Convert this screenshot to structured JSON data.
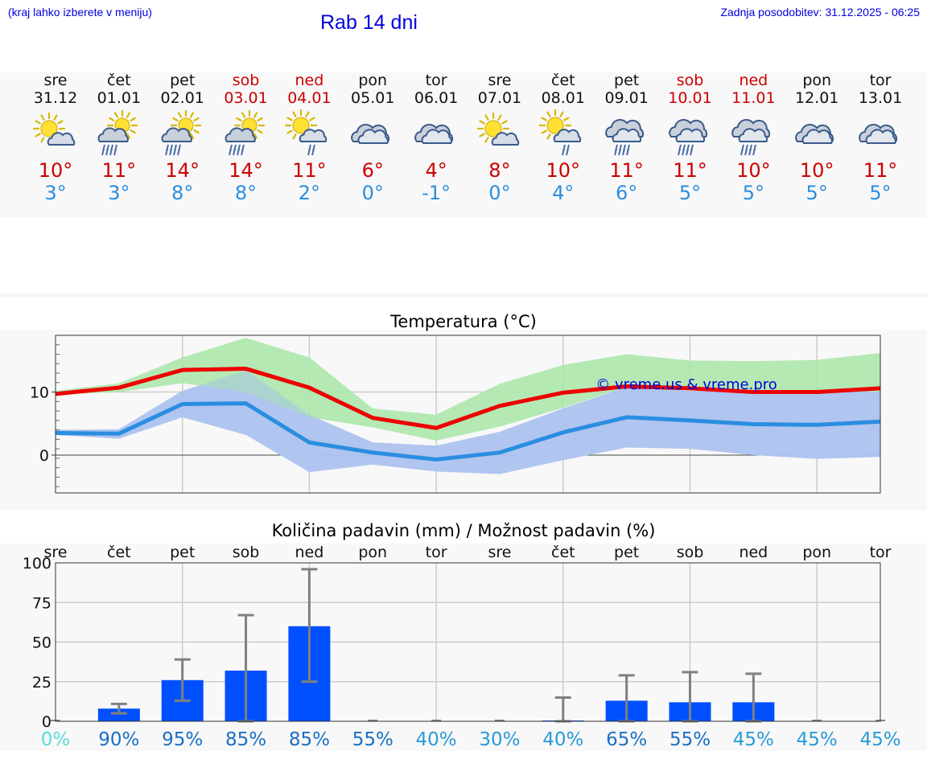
{
  "header": {
    "location_hint": "(kraj lahko izberete v meniju)",
    "title": "Rab 14 dni",
    "last_update": "Zadnja posodobitev: 31.12.2025 - 06:25"
  },
  "days": [
    {
      "name": "sre",
      "date": "31.12",
      "weekend": false,
      "icon": "sun-cloud-icon",
      "tmax": "10°",
      "tmin": "3°"
    },
    {
      "name": "čet",
      "date": "01.01",
      "weekend": false,
      "icon": "sun-cloud-rain-icon",
      "tmax": "11°",
      "tmin": "3°"
    },
    {
      "name": "pet",
      "date": "02.01",
      "weekend": false,
      "icon": "sun-cloud-rain-icon",
      "tmax": "14°",
      "tmin": "8°"
    },
    {
      "name": "sob",
      "date": "03.01",
      "weekend": true,
      "icon": "sun-cloud-rain-icon",
      "tmax": "14°",
      "tmin": "8°"
    },
    {
      "name": "ned",
      "date": "04.01",
      "weekend": true,
      "icon": "sun-cloud-light-rain-icon",
      "tmax": "11°",
      "tmin": "2°"
    },
    {
      "name": "pon",
      "date": "05.01",
      "weekend": false,
      "icon": "cloud-icon",
      "tmax": "6°",
      "tmin": "0°"
    },
    {
      "name": "tor",
      "date": "06.01",
      "weekend": false,
      "icon": "cloud-icon",
      "tmax": "4°",
      "tmin": "-1°"
    },
    {
      "name": "sre",
      "date": "07.01",
      "weekend": false,
      "icon": "sun-cloud-icon",
      "tmax": "8°",
      "tmin": "0°"
    },
    {
      "name": "čet",
      "date": "08.01",
      "weekend": false,
      "icon": "sun-cloud-light-rain-icon",
      "tmax": "10°",
      "tmin": "4°"
    },
    {
      "name": "pet",
      "date": "09.01",
      "weekend": false,
      "icon": "cloud-rain-icon",
      "tmax": "11°",
      "tmin": "6°"
    },
    {
      "name": "sob",
      "date": "10.01",
      "weekend": true,
      "icon": "cloud-rain-icon",
      "tmax": "11°",
      "tmin": "5°"
    },
    {
      "name": "ned",
      "date": "11.01",
      "weekend": true,
      "icon": "cloud-rain-icon",
      "tmax": "10°",
      "tmin": "5°"
    },
    {
      "name": "pon",
      "date": "12.01",
      "weekend": false,
      "icon": "cloud-icon",
      "tmax": "10°",
      "tmin": "5°"
    },
    {
      "name": "tor",
      "date": "13.01",
      "weekend": false,
      "icon": "cloud-icon",
      "tmax": "11°",
      "tmin": "5°"
    }
  ],
  "colors": {
    "max_line": "#ee0000",
    "min_line": "#2a8ee0",
    "max_band": "#a8e6a8",
    "min_band": "#aec4f0",
    "bar": "#0050ff",
    "whisker": "#808080"
  },
  "chart_data": [
    {
      "type": "line",
      "title": "Temperatura (°C)",
      "watermark": "© vreme.us & vreme.pro",
      "x": [
        0,
        1,
        2,
        3,
        4,
        5,
        6,
        7,
        8,
        9,
        10,
        11,
        12,
        13
      ],
      "ylim": [
        -6,
        19
      ],
      "yticks": [
        0,
        10
      ],
      "series": [
        {
          "name": "max",
          "values": [
            9.7,
            10.7,
            13.5,
            13.7,
            10.7,
            5.9,
            4.3,
            7.8,
            9.9,
            10.9,
            10.6,
            10.0,
            10.0,
            10.6
          ]
        },
        {
          "name": "min",
          "values": [
            3.5,
            3.4,
            8.1,
            8.2,
            2.0,
            0.4,
            -0.7,
            0.4,
            3.6,
            6.0,
            5.5,
            4.9,
            4.8,
            5.3
          ]
        }
      ],
      "bands": [
        {
          "name": "max-range",
          "upper": [
            10.2,
            11.4,
            15.5,
            18.6,
            15.5,
            7.4,
            6.4,
            11.3,
            14.3,
            16.0,
            15.0,
            14.9,
            15.1,
            16.2
          ],
          "lower": [
            9.6,
            10.0,
            11.4,
            10.0,
            6.0,
            4.4,
            2.3,
            4.5,
            7.5,
            10.8,
            10.5,
            10.0,
            10.0,
            10.0
          ]
        },
        {
          "name": "min-range",
          "upper": [
            4.0,
            4.1,
            10.2,
            13.4,
            6.4,
            2.0,
            1.5,
            3.7,
            7.4,
            10.8,
            10.2,
            10.0,
            10.2,
            10.0
          ]
        },
        {
          "name": "min-range-lower",
          "lower": [
            3.2,
            2.6,
            6.0,
            3.2,
            -2.7,
            -1.5,
            -2.6,
            -3.0,
            -0.8,
            1.2,
            1.0,
            0.0,
            -0.6,
            -0.3
          ]
        }
      ]
    },
    {
      "type": "bar",
      "title": "Količina padavin (mm) / Možnost padavin (%)",
      "categories": [
        "sre",
        "čet",
        "pet",
        "sob",
        "ned",
        "pon",
        "tor",
        "sre",
        "čet",
        "pet",
        "sob",
        "ned",
        "pon",
        "tor"
      ],
      "ylim": [
        0,
        100
      ],
      "yticks": [
        0,
        25,
        50,
        75,
        100
      ],
      "values": [
        0,
        8,
        26,
        32,
        60,
        0,
        0,
        0,
        0.5,
        13,
        12,
        12,
        0,
        0
      ],
      "error_high": [
        0,
        11,
        39,
        67,
        96,
        0,
        0,
        0,
        15,
        29,
        31,
        30,
        0,
        0
      ],
      "error_low": [
        0,
        5,
        13,
        0,
        25,
        0,
        0,
        0,
        0,
        0,
        0,
        0,
        0,
        0
      ],
      "probabilities": [
        "0%",
        "90%",
        "95%",
        "85%",
        "85%",
        "55%",
        "40%",
        "30%",
        "40%",
        "65%",
        "55%",
        "45%",
        "45%",
        "45%"
      ],
      "probability_colors": [
        "#55dddd",
        "#1a6fc4",
        "#1a6fc4",
        "#1a6fc4",
        "#1a6fc4",
        "#1a6fc4",
        "#2a9ad8",
        "#2a9ad8",
        "#2a9ad8",
        "#1a6fc4",
        "#1a6fc4",
        "#2a9ad8",
        "#2a9ad8",
        "#2a9ad8"
      ]
    }
  ]
}
